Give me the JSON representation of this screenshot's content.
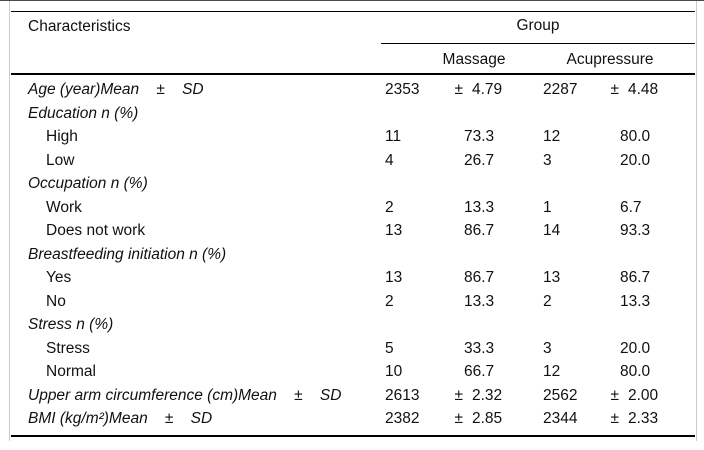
{
  "table": {
    "header": {
      "characteristics": "Characteristics",
      "group": "Group",
      "massage": "Massage",
      "acupressure": "Acupressure"
    },
    "rows": [
      {
        "type": "mean",
        "label": "Age (year)Mean    ±    SD",
        "m_n": "2353",
        "m_pm": "±",
        "m_v": "4.79",
        "a_n": "2287",
        "a_pm": "±",
        "a_v": "4.48"
      },
      {
        "type": "section",
        "label": "Education n (%)"
      },
      {
        "type": "item",
        "label": "High",
        "m_n": "11",
        "m_v": "73.3",
        "a_n": "12",
        "a_v": "80.0"
      },
      {
        "type": "item",
        "label": "Low",
        "m_n": "4",
        "m_v": "26.7",
        "a_n": "3",
        "a_v": "20.0"
      },
      {
        "type": "section",
        "label": "Occupation n (%)"
      },
      {
        "type": "item",
        "label": "Work",
        "m_n": "2",
        "m_v": "13.3",
        "a_n": "1",
        "a_v": "6.7"
      },
      {
        "type": "item",
        "label": "Does not work",
        "m_n": "13",
        "m_v": "86.7",
        "a_n": "14",
        "a_v": "93.3"
      },
      {
        "type": "section",
        "label": "Breastfeeding initiation n (%)"
      },
      {
        "type": "item",
        "label": "Yes",
        "m_n": "13",
        "m_v": "86.7",
        "a_n": "13",
        "a_v": "86.7"
      },
      {
        "type": "item",
        "label": "No",
        "m_n": "2",
        "m_v": "13.3",
        "a_n": "2",
        "a_v": "13.3"
      },
      {
        "type": "section",
        "label": "Stress n (%)"
      },
      {
        "type": "item",
        "label": "Stress",
        "m_n": "5",
        "m_v": "33.3",
        "a_n": "3",
        "a_v": "20.0"
      },
      {
        "type": "item",
        "label": "Normal",
        "m_n": "10",
        "m_v": "66.7",
        "a_n": "12",
        "a_v": "80.0"
      },
      {
        "type": "mean",
        "label": "Upper arm circumference (cm)Mean    ±    SD",
        "m_n": "2613",
        "m_pm": "±",
        "m_v": "2.32",
        "a_n": "2562",
        "a_pm": "±",
        "a_v": "2.00"
      },
      {
        "type": "mean",
        "label": "BMI (kg/m²)Mean    ±    SD",
        "m_n": "2382",
        "m_pm": "±",
        "m_v": "2.85",
        "a_n": "2344",
        "a_pm": "±",
        "a_v": "2.33"
      }
    ]
  }
}
